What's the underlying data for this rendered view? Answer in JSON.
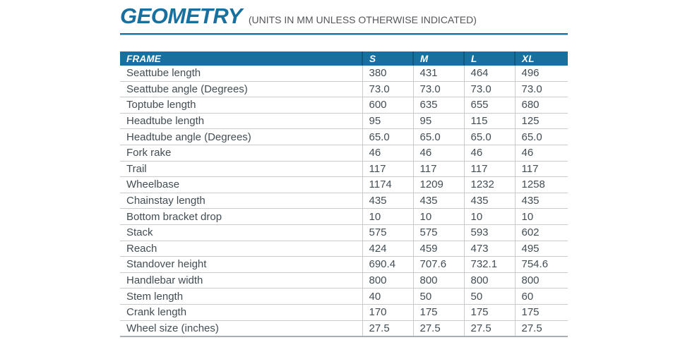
{
  "header": {
    "title": "GEOMETRY",
    "subtitle": "(UNITS IN MM UNLESS OTHERWISE INDICATED)"
  },
  "colors": {
    "accent_blue": "#19709f",
    "header_cell_divider": "#0e5a82",
    "divider_light_blue": "#9cc4da",
    "grid_line": "#c8cacc",
    "body_text": "#424d54",
    "subtitle_gray": "#54565a",
    "table_bottom_border": "#a9aeb2",
    "header_text": "#ffffff",
    "background": "#ffffff"
  },
  "table": {
    "columns": [
      "FRAME",
      "S",
      "M",
      "L",
      "XL"
    ],
    "rows": [
      {
        "label": "Seattube length",
        "values": [
          "380",
          "431",
          "464",
          "496"
        ]
      },
      {
        "label": "Seattube angle (Degrees)",
        "values": [
          "73.0",
          "73.0",
          "73.0",
          "73.0"
        ]
      },
      {
        "label": "Toptube length",
        "values": [
          "600",
          "635",
          "655",
          "680"
        ]
      },
      {
        "label": "Headtube length",
        "values": [
          "95",
          "95",
          "115",
          "125"
        ]
      },
      {
        "label": "Headtube angle (Degrees)",
        "values": [
          "65.0",
          "65.0",
          "65.0",
          "65.0"
        ]
      },
      {
        "label": "Fork rake",
        "values": [
          "46",
          "46",
          "46",
          "46"
        ]
      },
      {
        "label": "Trail",
        "values": [
          "117",
          "117",
          "117",
          "117"
        ]
      },
      {
        "label": "Wheelbase",
        "values": [
          "1174",
          "1209",
          "1232",
          "1258"
        ]
      },
      {
        "label": "Chainstay length",
        "values": [
          "435",
          "435",
          "435",
          "435"
        ]
      },
      {
        "label": "Bottom bracket drop",
        "values": [
          "10",
          "10",
          "10",
          "10"
        ]
      },
      {
        "label": "Stack",
        "values": [
          "575",
          "575",
          "593",
          "602"
        ]
      },
      {
        "label": "Reach",
        "values": [
          "424",
          "459",
          "473",
          "495"
        ]
      },
      {
        "label": "Standover height",
        "values": [
          "690.4",
          "707.6",
          "732.1",
          "754.6"
        ]
      },
      {
        "label": "Handlebar width",
        "values": [
          "800",
          "800",
          "800",
          "800"
        ]
      },
      {
        "label": "Stem length",
        "values": [
          "40",
          "50",
          "50",
          "60"
        ]
      },
      {
        "label": "Crank length",
        "values": [
          "170",
          "175",
          "175",
          "175"
        ]
      },
      {
        "label": "Wheel size (inches)",
        "values": [
          "27.5",
          "27.5",
          "27.5",
          "27.5"
        ]
      }
    ]
  }
}
